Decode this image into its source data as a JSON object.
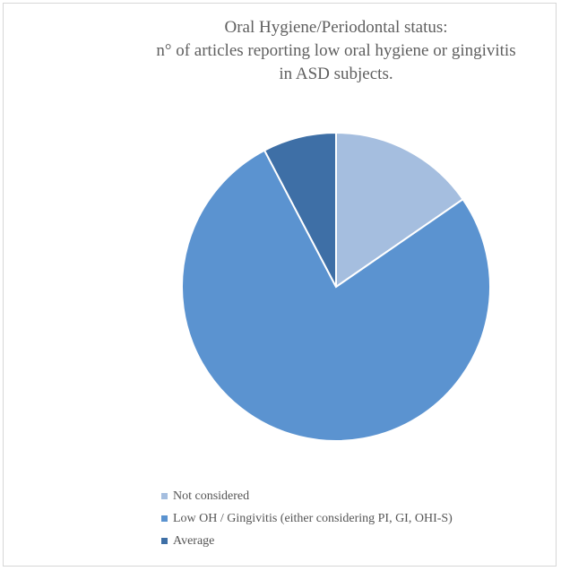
{
  "chart_data": {
    "type": "pie",
    "title": "Oral Hygiene/Periodontal status:",
    "subtitle_lines": [
      "n° of articles reporting low oral hygiene or gingivitis",
      "in ASD subjects."
    ],
    "categories": [
      "Not considered",
      "Low OH / Gingivitis (either considering PI, GI, OHI-S)",
      "Average"
    ],
    "values": [
      2,
      10,
      1
    ],
    "colors": [
      "#a5bedf",
      "#5b93d0",
      "#3e6fa6"
    ],
    "legend_position": "bottom"
  }
}
